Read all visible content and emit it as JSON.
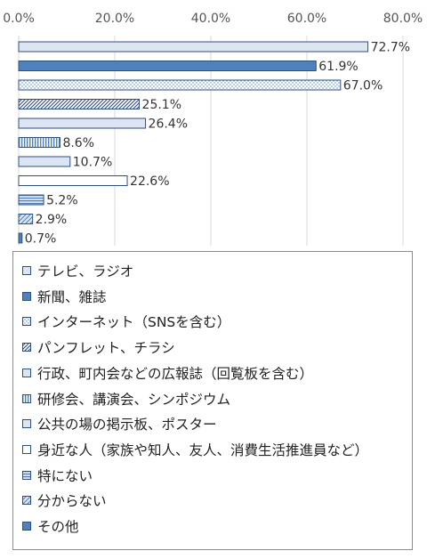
{
  "chart_data": {
    "type": "bar",
    "orientation": "horizontal",
    "xlim": [
      0,
      80
    ],
    "xticks": [
      "0.0%",
      "20.0%",
      "40.0%",
      "60.0%",
      "80.0%"
    ],
    "grid": true,
    "legend_position": "bottom",
    "categories": [
      "テレビ、ラジオ",
      "新聞、雑誌",
      "インターネット（SNSを含む）",
      "パンフレット、チラシ",
      "行政、町内会などの広報誌（回覧板を含む）",
      "研修会、講演会、シンポジウム",
      "公共の場の掲示板、ポスター",
      "身近な人（家族や知人、友人、消費生活推進員など）",
      "特にない",
      "分からない",
      "その他"
    ],
    "values": [
      72.7,
      61.9,
      67.0,
      25.1,
      26.4,
      8.6,
      10.7,
      22.6,
      5.2,
      2.9,
      0.7
    ],
    "value_labels": [
      "72.7%",
      "61.9%",
      "67.0%",
      "25.1%",
      "26.4%",
      "8.6%",
      "10.7%",
      "22.6%",
      "5.2%",
      "2.9%",
      "0.7%"
    ],
    "patterns": [
      "light",
      "solid",
      "dots",
      "diag",
      "light",
      "vlines",
      "light",
      "white",
      "hlines",
      "diag2",
      "solid"
    ],
    "colors": {
      "blue": "#4f81bd",
      "light_blue": "#dce6f2",
      "outline": "#2f4f7f",
      "grid": "#d9d9d9"
    }
  }
}
